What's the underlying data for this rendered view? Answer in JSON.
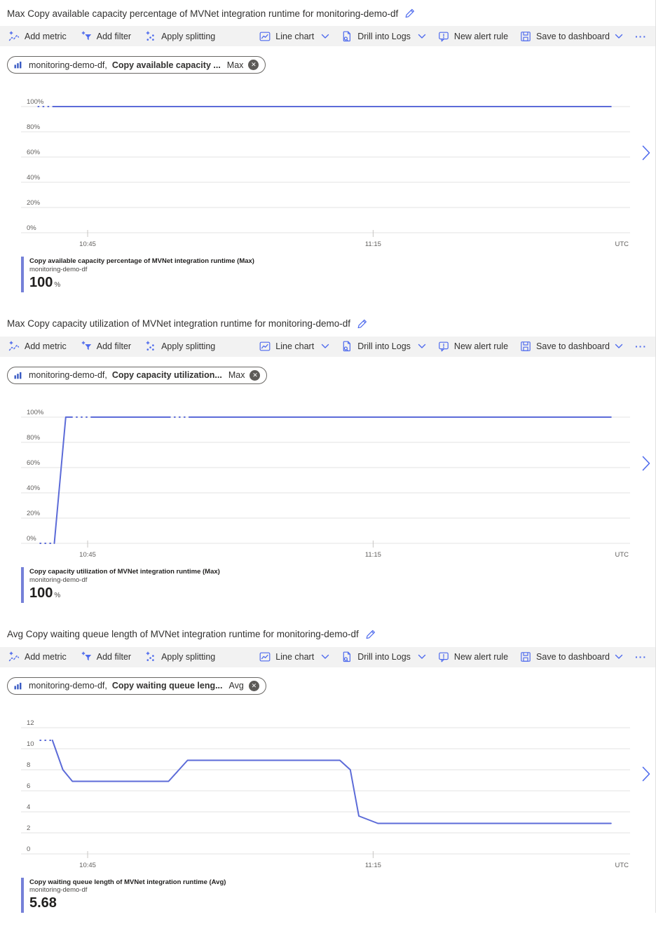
{
  "colors": {
    "accent": "#4f6bed",
    "line": "#5c6bd8",
    "legend_bar": "#7580d8",
    "grid": "#e3e3e3",
    "axis_text": "#605e5c",
    "toolbar_bg": "#f2f2f2",
    "text": "#323130"
  },
  "icons": {
    "close": "✕",
    "more": "···"
  },
  "toolbar": {
    "add_metric": "Add metric",
    "add_filter": "Add filter",
    "apply_splitting": "Apply splitting",
    "line_chart": "Line chart",
    "drill_into_logs": "Drill into Logs",
    "new_alert_rule": "New alert rule",
    "save_to_dashboard": "Save to dashboard"
  },
  "sections": [
    {
      "title": "Max Copy available capacity percentage of MVNet integration runtime for monitoring-demo-df",
      "pill": {
        "resource": "monitoring-demo-df,",
        "metric": "Copy available capacity ...",
        "aggregation": "Max"
      },
      "legend": {
        "metric": "Copy available capacity percentage of MVNet integration runtime (Max)",
        "resource": "monitoring-demo-df",
        "value": "100",
        "unit": "%"
      }
    },
    {
      "title": "Max Copy capacity utilization of MVNet integration runtime for monitoring-demo-df",
      "pill": {
        "resource": "monitoring-demo-df,",
        "metric": "Copy capacity utilization...",
        "aggregation": "Max"
      },
      "legend": {
        "metric": "Copy capacity utilization of MVNet integration runtime (Max)",
        "resource": "monitoring-demo-df",
        "value": "100",
        "unit": "%"
      }
    },
    {
      "title": "Avg Copy waiting queue length of MVNet integration runtime for monitoring-demo-df",
      "pill": {
        "resource": "monitoring-demo-df,",
        "metric": "Copy waiting queue leng...",
        "aggregation": "Avg"
      },
      "legend": {
        "metric": "Copy waiting queue length of MVNet integration runtime (Avg)",
        "resource": "monitoring-demo-df",
        "value": "5.68",
        "unit": ""
      }
    }
  ],
  "chart_data": [
    {
      "type": "line",
      "title": "Max Copy available capacity percentage of MVNet integration runtime for monitoring-demo-df",
      "series_name": "Copy available capacity percentage of MVNet integration runtime (Max)",
      "x_axis_unit": "UTC",
      "xlim": [
        38,
        102
      ],
      "ylim": [
        0,
        100
      ],
      "x_ticks": [
        {
          "t": 45,
          "label": "10:45"
        },
        {
          "t": 75,
          "label": "11:15"
        }
      ],
      "y_ticks": [
        {
          "v": 100,
          "label": "100%"
        },
        {
          "v": 80,
          "label": "80%"
        },
        {
          "v": 60,
          "label": "60%"
        },
        {
          "v": 40,
          "label": "40%"
        },
        {
          "v": 20,
          "label": "20%"
        },
        {
          "v": 0,
          "label": "0%"
        }
      ],
      "series": [
        {
          "name": "monitoring-demo-df",
          "color": "#5c6bd8",
          "segments": [
            {
              "style": "dotted",
              "points": [
                [
                  39.8,
                  100
                ],
                [
                  41.4,
                  100
                ]
              ]
            },
            {
              "style": "solid",
              "points": [
                [
                  41.4,
                  100
                ],
                [
                  100,
                  100
                ]
              ]
            }
          ]
        }
      ]
    },
    {
      "type": "line",
      "title": "Max Copy capacity utilization of MVNet integration runtime for monitoring-demo-df",
      "series_name": "Copy capacity utilization of MVNet integration runtime (Max)",
      "x_axis_unit": "UTC",
      "xlim": [
        38,
        102
      ],
      "ylim": [
        0,
        100
      ],
      "x_ticks": [
        {
          "t": 45,
          "label": "10:45"
        },
        {
          "t": 75,
          "label": "11:15"
        }
      ],
      "y_ticks": [
        {
          "v": 100,
          "label": "100%"
        },
        {
          "v": 80,
          "label": "80%"
        },
        {
          "v": 60,
          "label": "60%"
        },
        {
          "v": 40,
          "label": "40%"
        },
        {
          "v": 20,
          "label": "20%"
        },
        {
          "v": 0,
          "label": "0%"
        }
      ],
      "series": [
        {
          "name": "monitoring-demo-df",
          "color": "#5c6bd8",
          "segments": [
            {
              "style": "dotted",
              "points": [
                [
                  40,
                  0
                ],
                [
                  41.5,
                  0
                ]
              ]
            },
            {
              "style": "solid",
              "points": [
                [
                  41.5,
                  0
                ],
                [
                  42.7,
                  100
                ],
                [
                  43.3,
                  100
                ]
              ]
            },
            {
              "style": "dotted",
              "points": [
                [
                  43.3,
                  100
                ],
                [
                  45.5,
                  100
                ]
              ]
            },
            {
              "style": "solid",
              "points": [
                [
                  45.5,
                  100
                ],
                [
                  53.6,
                  100
                ]
              ]
            },
            {
              "style": "dotted",
              "points": [
                [
                  53.6,
                  100
                ],
                [
                  55.8,
                  100
                ]
              ]
            },
            {
              "style": "solid",
              "points": [
                [
                  55.8,
                  100
                ],
                [
                  100,
                  100
                ]
              ]
            }
          ]
        }
      ]
    },
    {
      "type": "line",
      "title": "Avg Copy waiting queue length of MVNet integration runtime for monitoring-demo-df",
      "series_name": "Copy waiting queue length of MVNet integration runtime (Avg)",
      "x_axis_unit": "UTC",
      "xlim": [
        38,
        102
      ],
      "ylim": [
        0,
        12
      ],
      "x_ticks": [
        {
          "t": 45,
          "label": "10:45"
        },
        {
          "t": 75,
          "label": "11:15"
        }
      ],
      "y_ticks": [
        {
          "v": 12,
          "label": "12"
        },
        {
          "v": 10,
          "label": "10"
        },
        {
          "v": 8,
          "label": "8"
        },
        {
          "v": 6,
          "label": "6"
        },
        {
          "v": 4,
          "label": "4"
        },
        {
          "v": 2,
          "label": "2"
        },
        {
          "v": 0,
          "label": "0"
        }
      ],
      "series": [
        {
          "name": "monitoring-demo-df",
          "color": "#5c6bd8",
          "segments": [
            {
              "style": "dotted",
              "points": [
                [
                  40,
                  10.8
                ],
                [
                  41.3,
                  10.8
                ]
              ]
            },
            {
              "style": "solid",
              "points": [
                [
                  41.3,
                  10.8
                ],
                [
                  42.4,
                  8.0
                ],
                [
                  43.4,
                  6.9
                ],
                [
                  53.5,
                  6.9
                ],
                [
                  55.5,
                  8.9
                ],
                [
                  71.5,
                  8.9
                ],
                [
                  72.6,
                  8.0
                ],
                [
                  73.5,
                  3.6
                ],
                [
                  75.5,
                  2.9
                ],
                [
                  100,
                  2.9
                ]
              ]
            }
          ]
        }
      ]
    }
  ]
}
